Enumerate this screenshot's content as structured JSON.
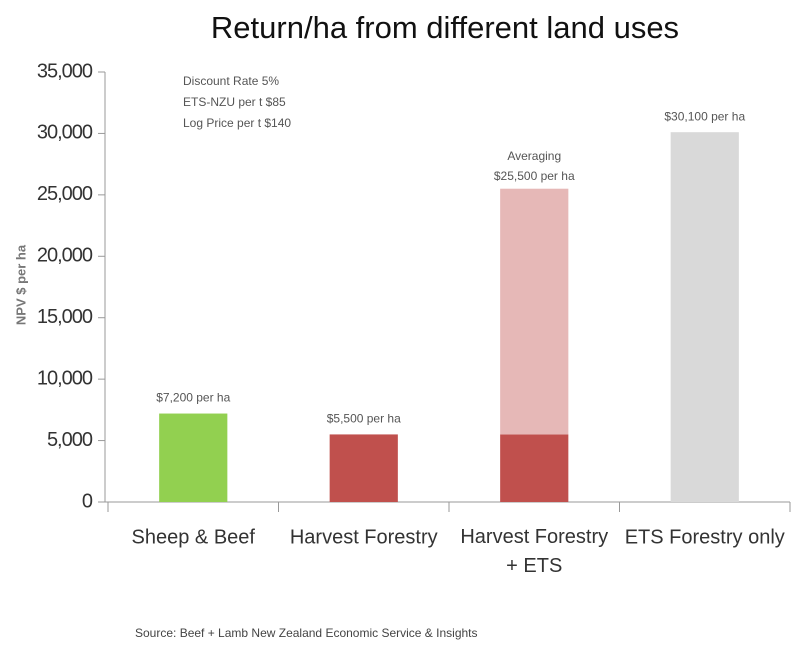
{
  "chart_data": {
    "type": "stacked_bar",
    "title": "Return/ha from different land uses",
    "y_label": "NPV $ per ha",
    "categories": [
      "Sheep & Beef",
      "Harvest Forestry",
      [
        "Harvest Forestry",
        "+ ETS"
      ],
      "ETS Forestry only"
    ],
    "series": [
      {
        "values": [
          7200,
          5500,
          5500,
          30100
        ],
        "colors": [
          "#92d050",
          "#c0504d",
          "#c0504d",
          "#d9d9d9"
        ],
        "value_labels": [
          "$7,200 per ha",
          "$5,500 per ha",
          null,
          "$30,100 per ha"
        ]
      },
      {
        "values": [
          null,
          null,
          20000,
          null
        ],
        "color": "#e6b8b7"
      }
    ],
    "stack_label": [
      "Averaging",
      "$25,500 per ha"
    ],
    "ylim": [
      0,
      35000
    ],
    "yticks": [
      0,
      {
        "value": 5000,
        "label": "5,000"
      },
      {
        "value": 10000,
        "label": "10,000"
      },
      {
        "value": 15000,
        "label": "15,000"
      },
      {
        "value": 20000,
        "label": "20,000"
      },
      {
        "value": 25000,
        "label": "25,000"
      },
      {
        "value": 30000,
        "label": "30,000"
      },
      {
        "value": 35000,
        "label": "35,000"
      }
    ],
    "grid": false,
    "notes": [
      "Discount Rate 5%",
      "ETS-NZU per t $85",
      "Log Price per t $140"
    ],
    "source": "Source: Beef + Lamb New Zealand Economic Service & Insights"
  }
}
